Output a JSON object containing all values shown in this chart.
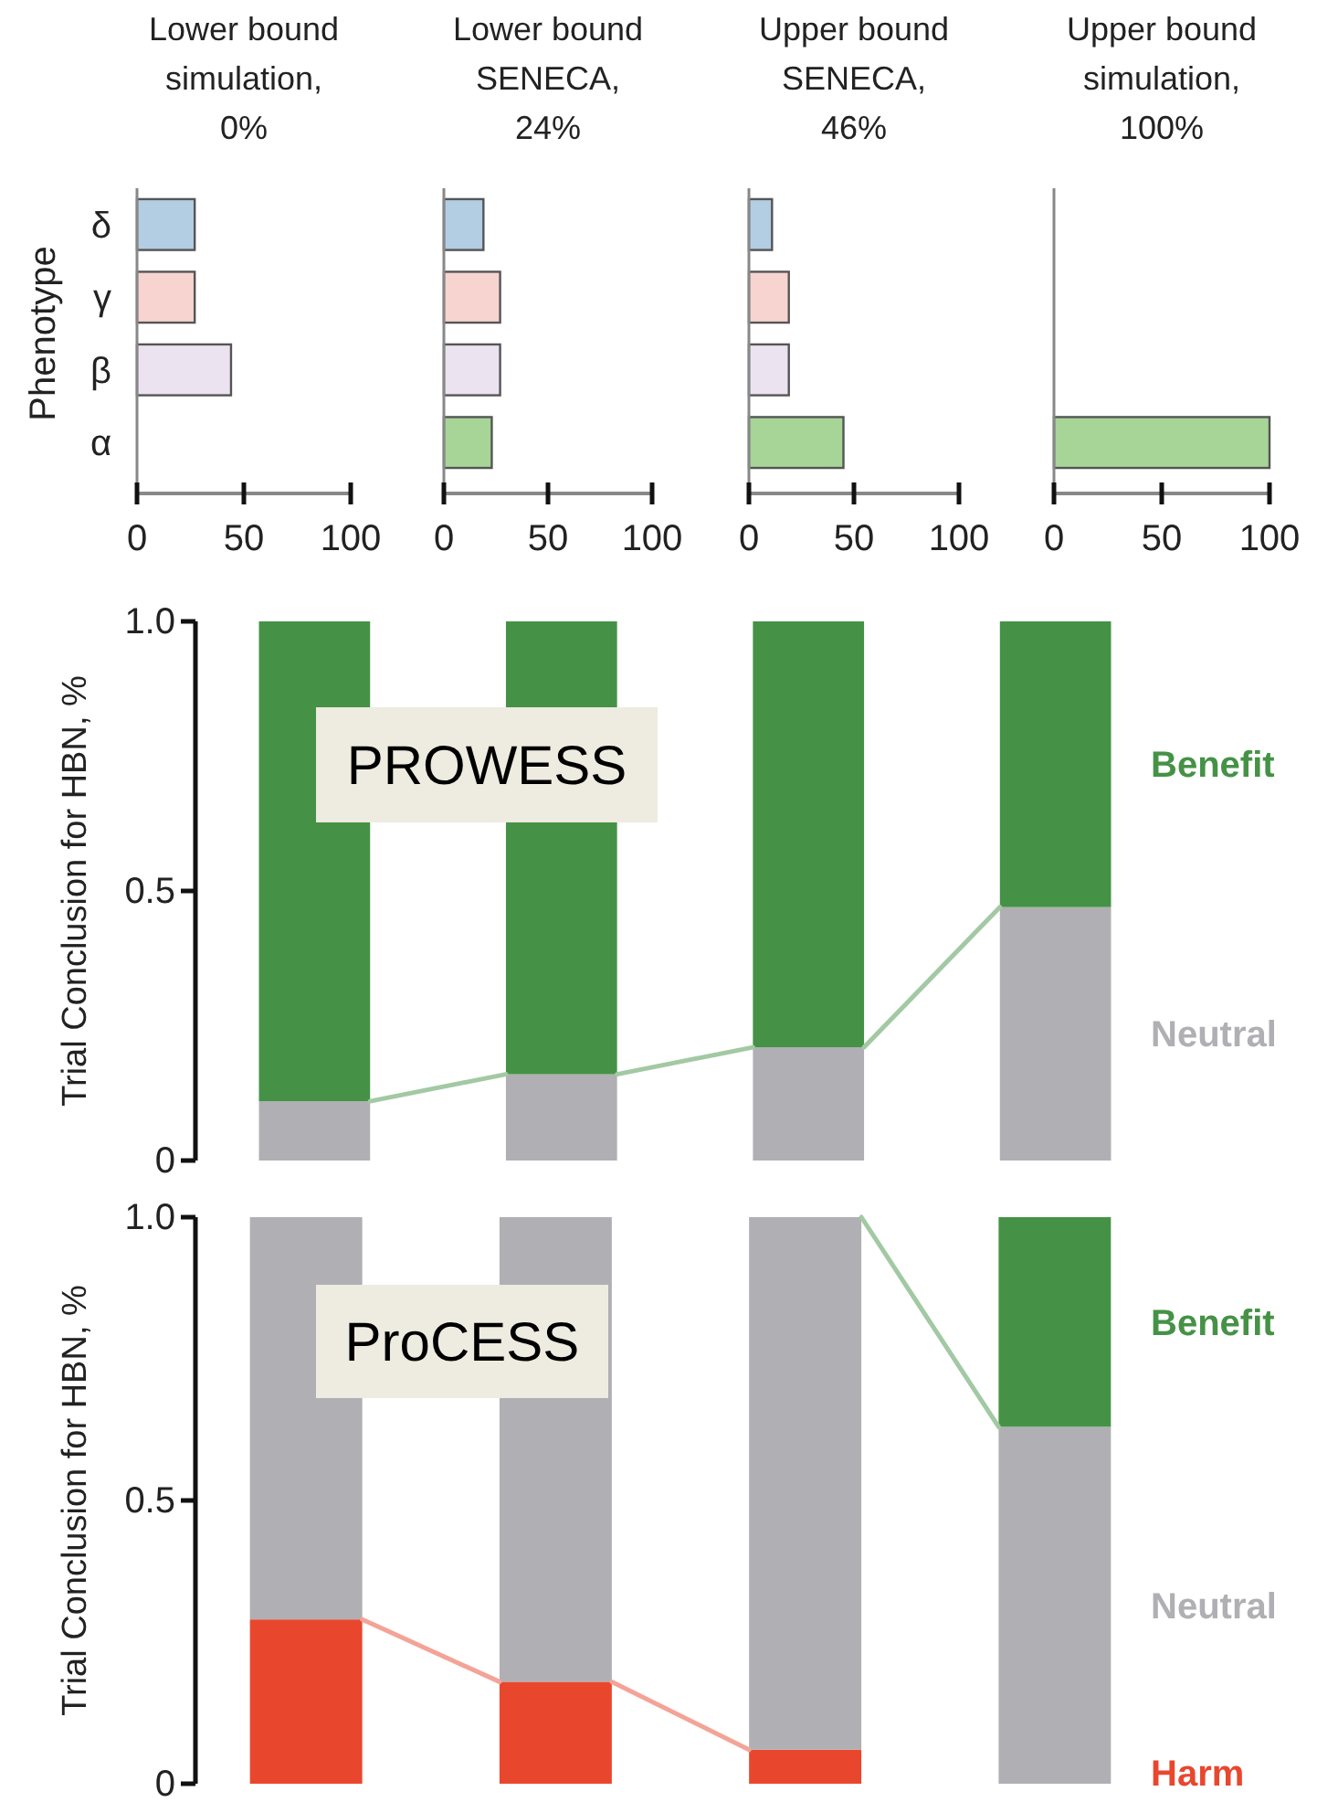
{
  "chart_data": [
    {
      "type": "bar",
      "orientation": "horizontal",
      "title": "Lower bound simulation, 0%",
      "ylabel": "Phenotype",
      "categories": [
        "δ",
        "γ",
        "β",
        "α"
      ],
      "values": [
        27,
        27,
        44,
        null
      ],
      "colors": [
        "#b3cde3",
        "#f7d4d0",
        "#ebe3f0",
        null
      ],
      "xlim": [
        0,
        100
      ],
      "xticks": [
        0,
        50,
        100
      ]
    },
    {
      "type": "bar",
      "orientation": "horizontal",
      "title": "Lower bound SENECA, 24%",
      "categories": [
        null,
        null,
        null,
        null
      ],
      "values": [
        19,
        27,
        27,
        23
      ],
      "colors": [
        "#b3cde3",
        "#f7d4d0",
        "#ebe3f0",
        "#a7d597"
      ],
      "xlim": [
        0,
        100
      ],
      "xticks": [
        0,
        50,
        100
      ],
      "tick_labels": "x"
    },
    {
      "type": "bar",
      "orientation": "horizontal",
      "title": "Upper bound SENECA, 46%",
      "categories": [
        null,
        null,
        null,
        null
      ],
      "values": [
        11,
        19,
        19,
        45
      ],
      "colors": [
        "#b3cde3",
        "#f7d4d0",
        "#ebe3f0",
        "#a7d597"
      ],
      "xlim": [
        0,
        100
      ],
      "xticks": [
        0,
        50,
        100
      ],
      "tick_labels": "x"
    },
    {
      "type": "bar",
      "orientation": "horizontal",
      "title": "Upper bound simulation, 100%",
      "categories": [
        null,
        null,
        null,
        null
      ],
      "values": [
        null,
        null,
        null,
        100
      ],
      "colors": [
        null,
        null,
        null,
        "#a7d597"
      ],
      "xlim": [
        0,
        100
      ],
      "xticks": [
        0,
        50,
        100
      ],
      "tick_labels": "x"
    },
    {
      "type": "bar",
      "stacked": true,
      "ylabel": "Trial Conclusion for HBN, %",
      "categories": [
        null,
        null,
        null,
        null
      ],
      "ylim": [
        0,
        1
      ],
      "annotations": [
        "PROWESS"
      ],
      "yticks": [
        {
          "value": 0,
          "label": "0"
        },
        {
          "value": 0.5,
          "label": "0.5"
        },
        {
          "value": 1,
          "label": "1.0"
        }
      ],
      "tick_labels": "y",
      "series": [
        {
          "name": "Neutral",
          "color": "#b0afb4",
          "values": [
            0.11,
            0.16,
            0.21,
            0.47
          ]
        },
        {
          "name": "Benefit",
          "color": "#459246",
          "values": [
            0.89,
            0.84,
            0.79,
            0.53
          ]
        }
      ]
    },
    {
      "type": "bar",
      "stacked": true,
      "ylabel": "Trial Conclusion for HBN, %",
      "categories": [
        null,
        null,
        null,
        null
      ],
      "ylim": [
        0,
        1
      ],
      "yticks": [
        {
          "value": 0,
          "label": "0"
        },
        {
          "value": 0.5,
          "label": "0.5"
        },
        {
          "value": 1,
          "label": "1.0"
        }
      ],
      "annotations": [
        "ProCESS"
      ],
      "tick_labels": "y",
      "series": [
        {
          "name": "Harm",
          "color": "#e8472e",
          "values": [
            0.29,
            0.18,
            0.06,
            0
          ]
        },
        {
          "name": "Neutral",
          "color": "#b0afb4",
          "values": [
            0.71,
            0.82,
            0.94,
            0.63
          ]
        },
        {
          "name": "Benefit",
          "color": "#459246",
          "values": [
            0,
            0,
            0,
            0.37
          ]
        }
      ]
    }
  ]
}
